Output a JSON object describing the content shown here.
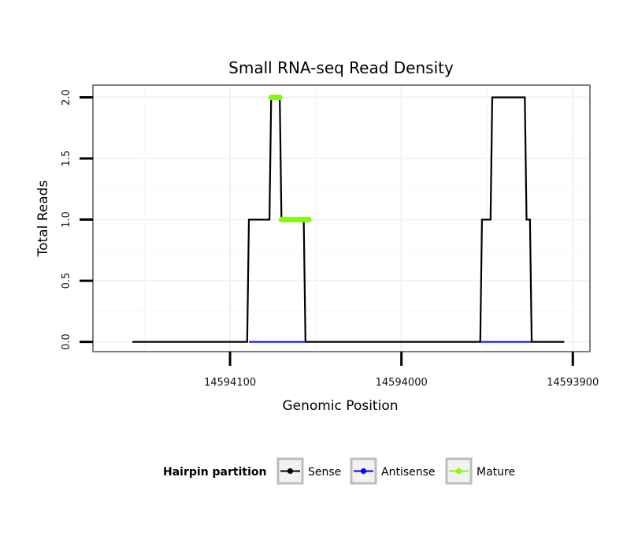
{
  "chart_data": {
    "type": "line",
    "title": "Small RNA-seq Read Density",
    "xlabel": "Genomic Position",
    "ylabel": "Total Reads",
    "xlim": [
      14594180,
      14593890
    ],
    "ylim": [
      -0.08,
      2.1
    ],
    "x_reversed": true,
    "grid": true,
    "x_ticks": [
      14594100,
      14594000,
      14593900
    ],
    "x_tick_labels": [
      "14594100",
      "14594000",
      "14593900"
    ],
    "y_ticks": [
      0.0,
      0.5,
      1.0,
      1.5,
      2.0
    ],
    "y_tick_labels": [
      "0.0",
      "0.5",
      "1.0",
      "1.5",
      "2.0"
    ],
    "legend": {
      "title": "Hairpin partition",
      "position": "bottom",
      "entries": [
        "Sense",
        "Antisense",
        "Mature"
      ]
    },
    "series": [
      {
        "name": "Sense",
        "color": "#000000",
        "x": [
          14594157,
          14594090,
          14594089,
          14594077,
          14594076,
          14594071,
          14594070,
          14594057,
          14594056,
          14594055,
          14594054,
          14594046,
          14594045,
          14593954,
          14593953,
          14593948,
          14593947,
          14593928,
          14593927,
          14593925,
          14593924,
          14593905
        ],
        "values": [
          0,
          0,
          1,
          1,
          2,
          2,
          1,
          1,
          0,
          0,
          0,
          0,
          0,
          0,
          1,
          1,
          2,
          2,
          1,
          1,
          0,
          0
        ]
      },
      {
        "name": "Antisense",
        "color": "#0000ff",
        "x": [
          14594089,
          14594056,
          14593954,
          14593924
        ],
        "values": [
          0,
          0,
          0,
          0
        ],
        "segments": [
          [
            0,
            1
          ],
          [
            2,
            3
          ]
        ]
      },
      {
        "name": "Mature",
        "color": "#7fff00",
        "x": [
          14594076,
          14594071,
          14594070,
          14594054
        ],
        "values": [
          2,
          2,
          1,
          1
        ],
        "segments": [
          [
            0,
            1
          ],
          [
            2,
            3
          ]
        ]
      }
    ]
  }
}
